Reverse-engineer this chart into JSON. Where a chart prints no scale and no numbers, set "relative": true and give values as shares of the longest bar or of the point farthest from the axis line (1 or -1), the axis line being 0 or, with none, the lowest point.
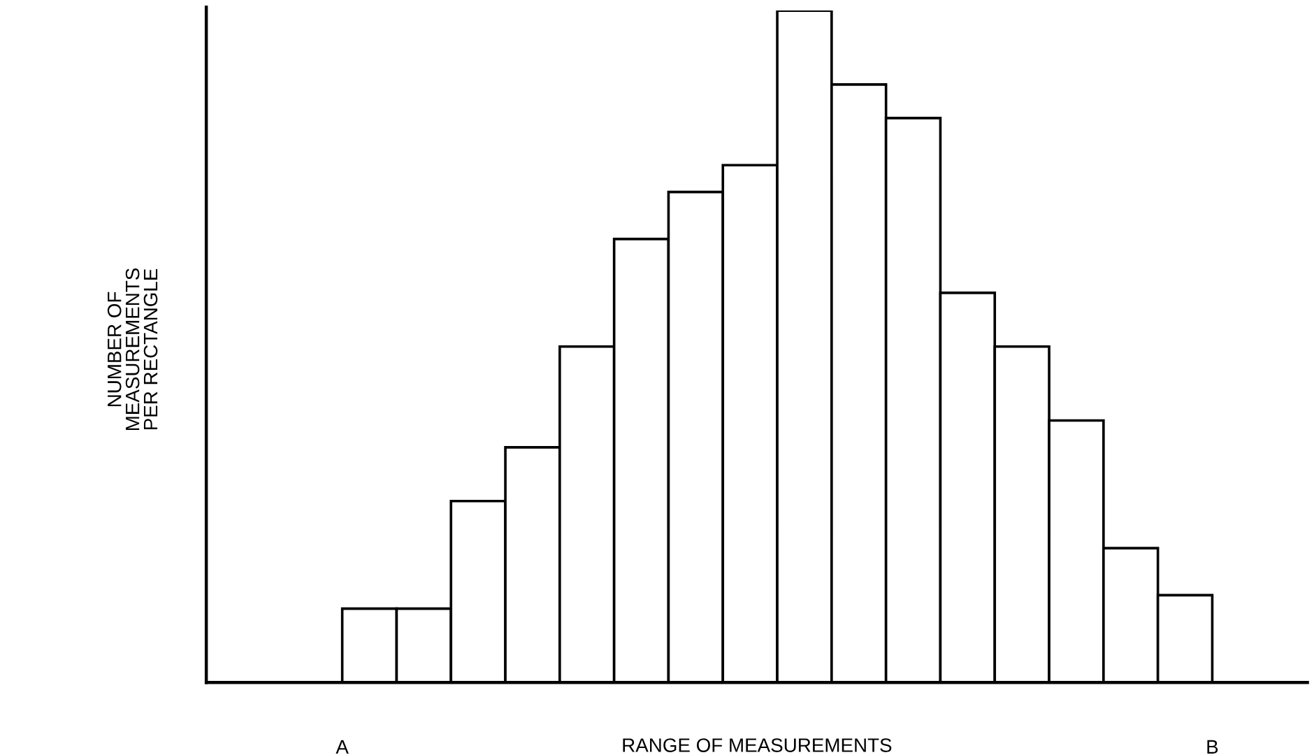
{
  "chart_data": {
    "type": "bar",
    "relative": true,
    "xlabel": "RANGE OF MEASUREMENTS",
    "categories": [
      null,
      null,
      null,
      null,
      null,
      null,
      null,
      null,
      null,
      null,
      null,
      null,
      null,
      null,
      null,
      null
    ],
    "values": [
      0.11,
      0.11,
      0.27,
      0.35,
      0.5,
      0.66,
      0.73,
      0.77,
      1,
      0.89,
      0.84,
      0.58,
      0.5,
      0.39,
      0.2,
      0.13
    ],
    "color": "#ffffff",
    "annotations": [
      "NUMBER OF\nMEASUREMENTS\nPER RECTANGLE",
      "A",
      "B"
    ],
    "grid": false,
    "legend": false
  }
}
